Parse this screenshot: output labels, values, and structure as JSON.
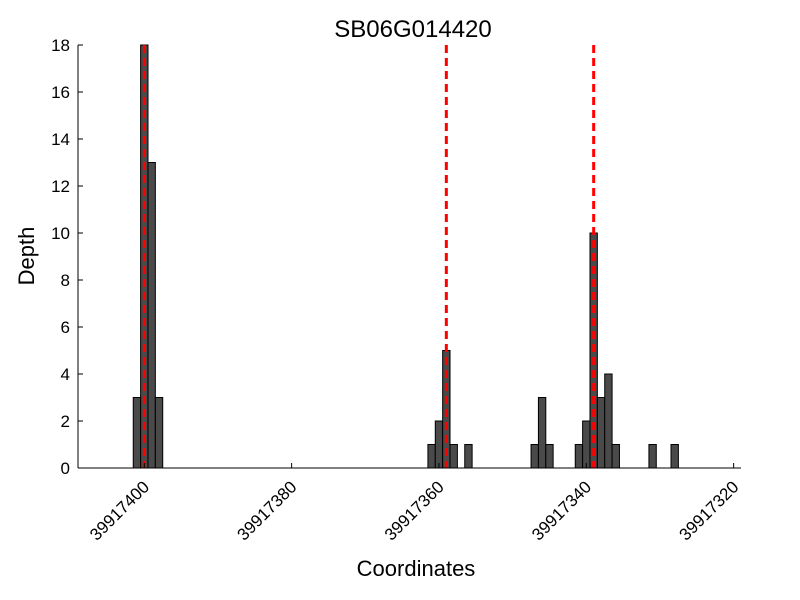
{
  "chart_data": {
    "type": "bar",
    "title": "SB06G014420",
    "xlabel": "Coordinates",
    "ylabel": "Depth",
    "x_reversed": true,
    "xlim": [
      39917409,
      39917319
    ],
    "ylim": [
      0,
      18
    ],
    "xticks": [
      39917400,
      39917380,
      39917360,
      39917340,
      39917320
    ],
    "yticks": [
      0,
      2,
      4,
      6,
      8,
      10,
      12,
      14,
      16,
      18
    ],
    "bar_color": "#4a4a4a",
    "bar_edge_color": "#000000",
    "vline_color": "#ff0000",
    "bars": [
      {
        "x": 39917401,
        "y": 3
      },
      {
        "x": 39917400,
        "y": 18
      },
      {
        "x": 39917399,
        "y": 13
      },
      {
        "x": 39917398,
        "y": 3
      },
      {
        "x": 39917361,
        "y": 1
      },
      {
        "x": 39917360,
        "y": 2
      },
      {
        "x": 39917359,
        "y": 5
      },
      {
        "x": 39917358,
        "y": 1
      },
      {
        "x": 39917356,
        "y": 1
      },
      {
        "x": 39917347,
        "y": 1
      },
      {
        "x": 39917346,
        "y": 3
      },
      {
        "x": 39917345,
        "y": 1
      },
      {
        "x": 39917341,
        "y": 1
      },
      {
        "x": 39917340,
        "y": 2
      },
      {
        "x": 39917339,
        "y": 10
      },
      {
        "x": 39917338,
        "y": 3
      },
      {
        "x": 39917337,
        "y": 4
      },
      {
        "x": 39917336,
        "y": 1
      },
      {
        "x": 39917331,
        "y": 1
      },
      {
        "x": 39917328,
        "y": 1
      }
    ],
    "vlines": [
      39917400,
      39917359,
      39917339
    ],
    "grid": false
  }
}
